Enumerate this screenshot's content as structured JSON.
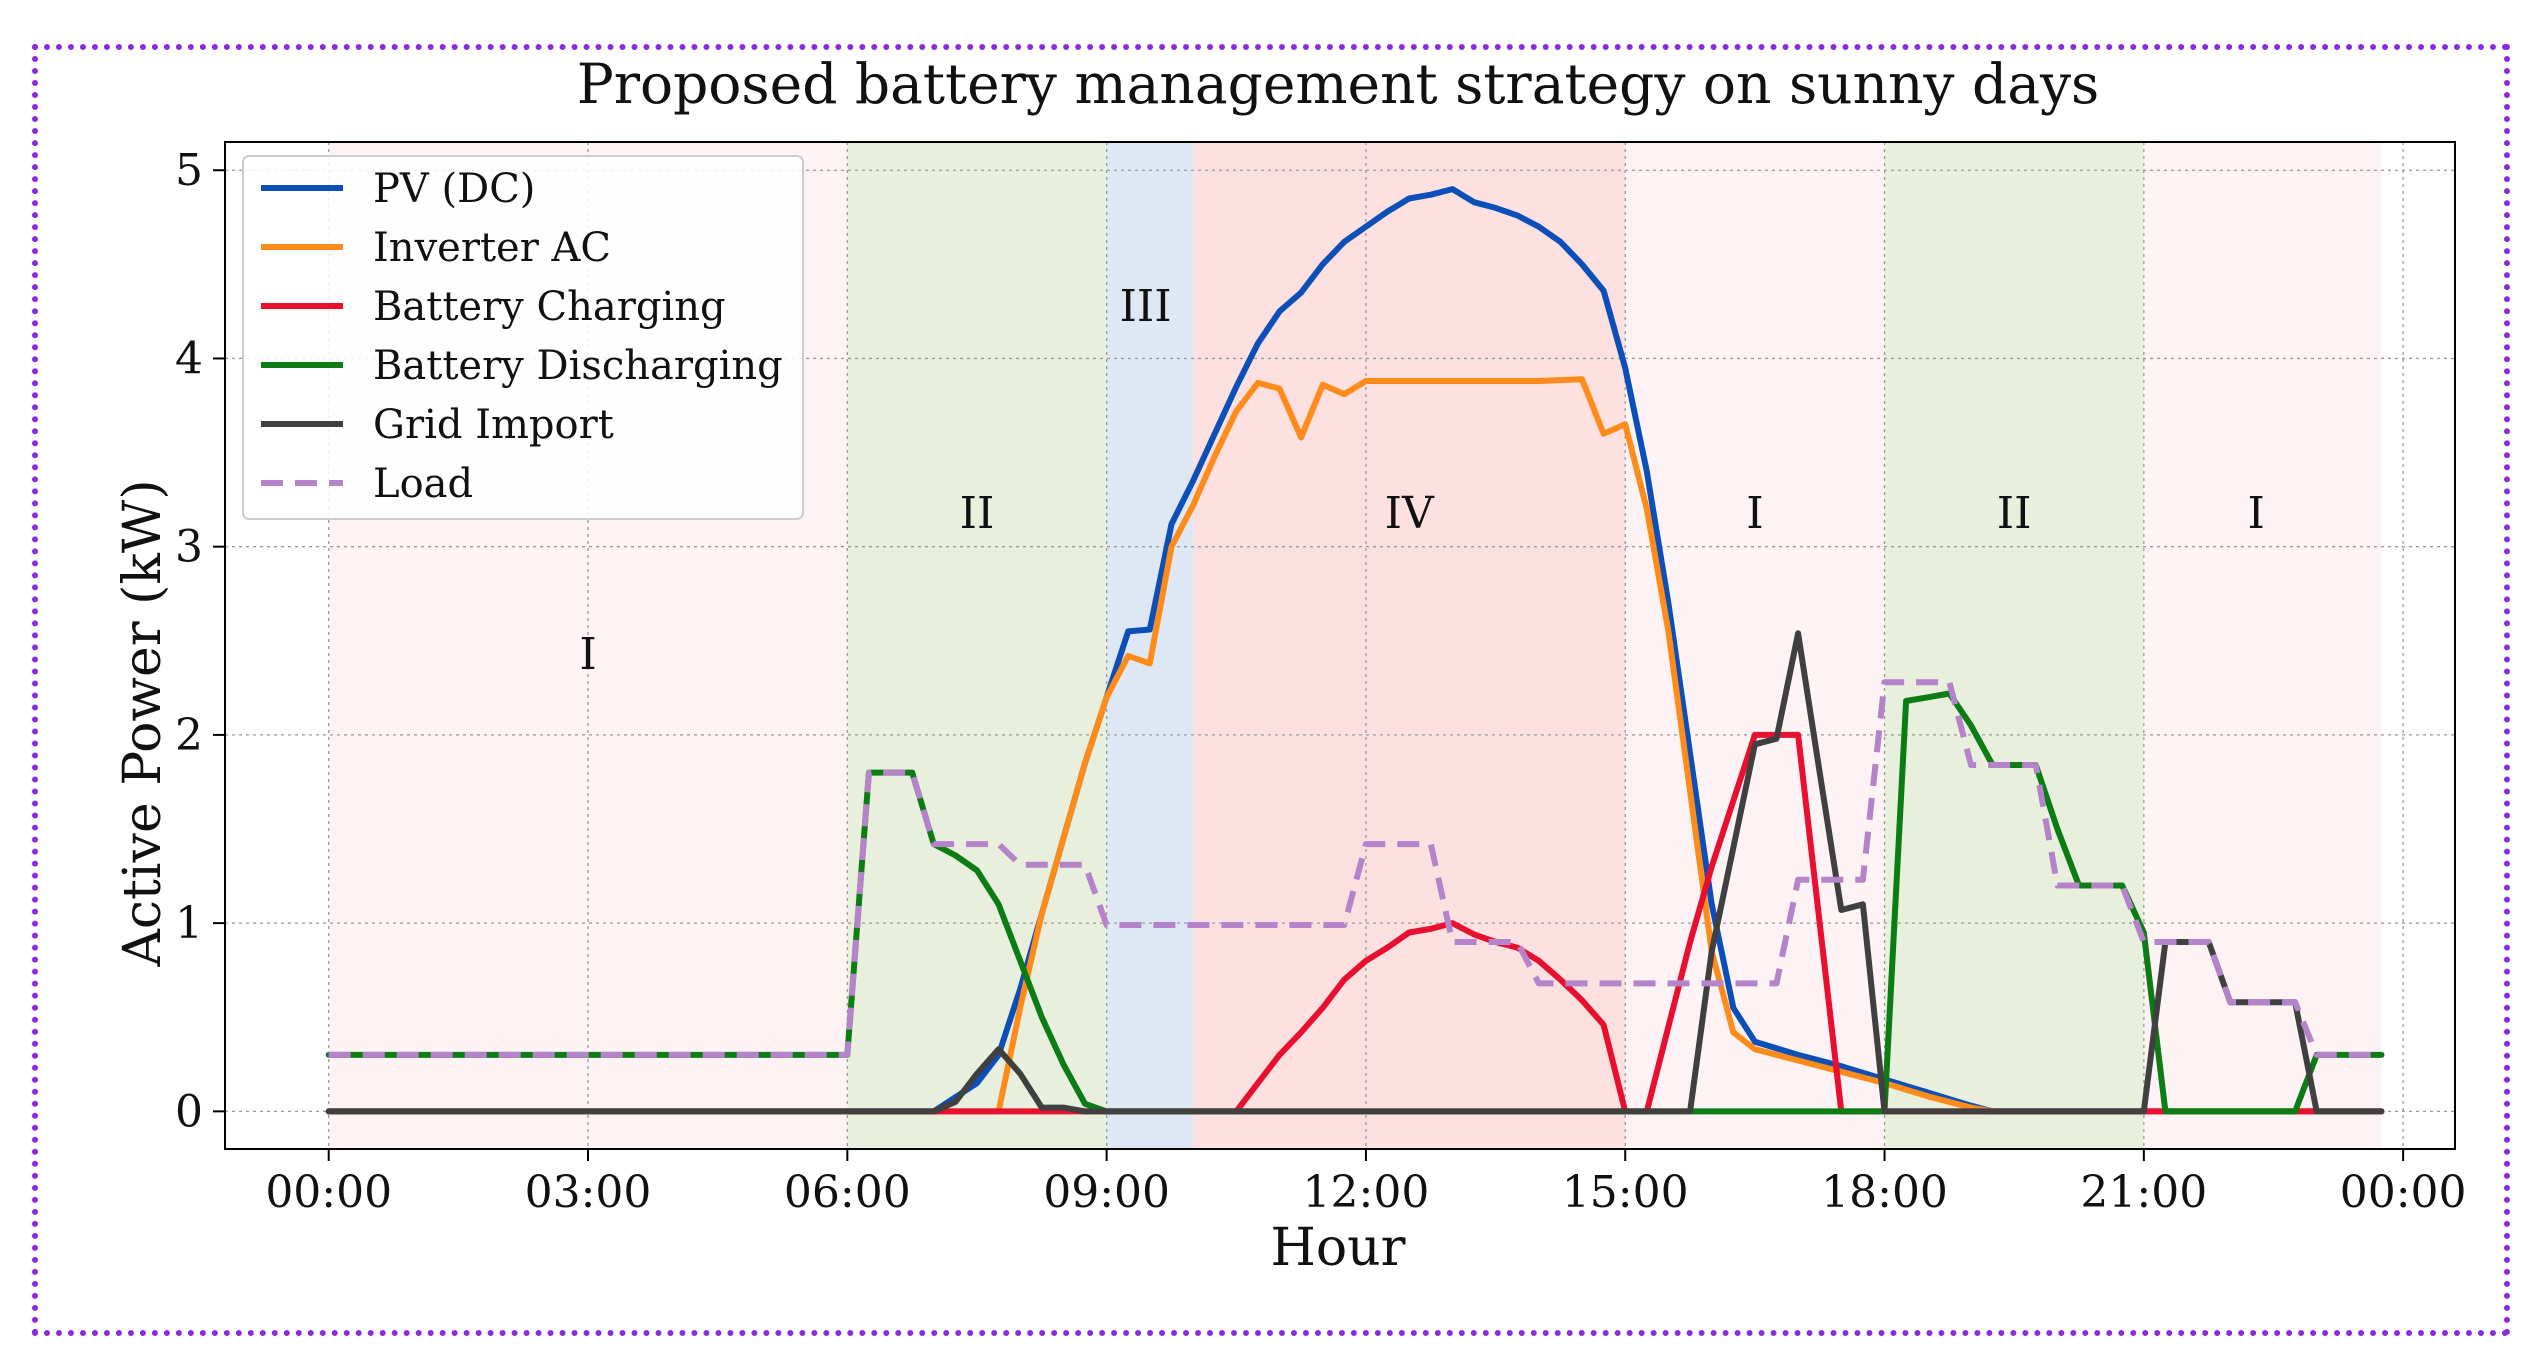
{
  "chart_data": {
    "type": "line",
    "title": "Proposed battery management strategy on sunny days",
    "xlabel": "Hour",
    "ylabel": "Active Power (kW)",
    "xlim": [
      -1.2,
      24.6
    ],
    "ylim": [
      -0.2,
      5.15
    ],
    "grid": true,
    "legend_position": "top-left",
    "x_ticks": [
      0,
      3,
      6,
      9,
      12,
      15,
      18,
      21,
      24
    ],
    "x_tick_labels": [
      "00:00",
      "03:00",
      "06:00",
      "09:00",
      "12:00",
      "15:00",
      "18:00",
      "21:00",
      "00:00"
    ],
    "y_ticks": [
      0,
      1,
      2,
      3,
      4,
      5
    ],
    "y_tick_labels": [
      "0",
      "1",
      "2",
      "3",
      "4",
      "5"
    ],
    "regions": [
      {
        "label": "I",
        "start": 0,
        "end": 6,
        "color": "#fdf3f4",
        "label_x": 3,
        "label_y": 2.35
      },
      {
        "label": "II",
        "start": 6,
        "end": 9,
        "color": "#e9efdd",
        "label_x": 7.5,
        "label_y": 3.1
      },
      {
        "label": "III",
        "start": 9,
        "end": 10,
        "color": "#dde8f4",
        "label_x": 9.45,
        "label_y": 4.2
      },
      {
        "label": "IV",
        "start": 10,
        "end": 15,
        "color": "#fde1e1",
        "label_x": 12.5,
        "label_y": 3.1
      },
      {
        "label": "I",
        "start": 15,
        "end": 18,
        "color": "#fdf3f4",
        "label_x": 16.5,
        "label_y": 3.1
      },
      {
        "label": "II",
        "start": 18,
        "end": 21,
        "color": "#e9efdd",
        "label_x": 19.5,
        "label_y": 3.1
      },
      {
        "label": "I",
        "start": 21,
        "end": 23.75,
        "color": "#fdf3f4",
        "label_x": 22.3,
        "label_y": 3.1
      }
    ],
    "series": [
      {
        "name": "PV (DC)",
        "color": "#0d4fb8",
        "dash": false,
        "points": [
          [
            0,
            0
          ],
          [
            7,
            0
          ],
          [
            7.5,
            0.15
          ],
          [
            7.75,
            0.3
          ],
          [
            8,
            0.65
          ],
          [
            8.25,
            1.05
          ],
          [
            8.5,
            1.45
          ],
          [
            8.75,
            1.85
          ],
          [
            9,
            2.2
          ],
          [
            9.25,
            2.55
          ],
          [
            9.5,
            2.56
          ],
          [
            9.75,
            3.12
          ],
          [
            10,
            3.35
          ],
          [
            10.25,
            3.6
          ],
          [
            10.5,
            3.85
          ],
          [
            10.75,
            4.08
          ],
          [
            11,
            4.25
          ],
          [
            11.25,
            4.35
          ],
          [
            11.5,
            4.5
          ],
          [
            11.75,
            4.62
          ],
          [
            12,
            4.7
          ],
          [
            12.25,
            4.78
          ],
          [
            12.5,
            4.85
          ],
          [
            12.75,
            4.87
          ],
          [
            13,
            4.9
          ],
          [
            13.25,
            4.83
          ],
          [
            13.5,
            4.8
          ],
          [
            13.75,
            4.76
          ],
          [
            14,
            4.7
          ],
          [
            14.25,
            4.62
          ],
          [
            14.5,
            4.5
          ],
          [
            14.75,
            4.36
          ],
          [
            15,
            3.95
          ],
          [
            15.25,
            3.4
          ],
          [
            15.5,
            2.7
          ],
          [
            15.75,
            1.9
          ],
          [
            16,
            1.1
          ],
          [
            16.25,
            0.55
          ],
          [
            16.5,
            0.37
          ],
          [
            17,
            0.3
          ],
          [
            17.5,
            0.24
          ],
          [
            18,
            0.17
          ],
          [
            18.5,
            0.1
          ],
          [
            19,
            0.03
          ],
          [
            19.25,
            0
          ],
          [
            23.75,
            0
          ]
        ]
      },
      {
        "name": "Inverter AC",
        "color": "#ff8c1a",
        "dash": false,
        "points": [
          [
            0,
            0
          ],
          [
            7.75,
            0
          ],
          [
            8,
            0.55
          ],
          [
            8.25,
            1.05
          ],
          [
            8.5,
            1.45
          ],
          [
            8.75,
            1.85
          ],
          [
            9,
            2.2
          ],
          [
            9.25,
            2.42
          ],
          [
            9.5,
            2.38
          ],
          [
            9.75,
            3.0
          ],
          [
            10,
            3.22
          ],
          [
            10.25,
            3.48
          ],
          [
            10.5,
            3.72
          ],
          [
            10.75,
            3.87
          ],
          [
            11,
            3.84
          ],
          [
            11.25,
            3.58
          ],
          [
            11.5,
            3.86
          ],
          [
            11.75,
            3.81
          ],
          [
            12,
            3.88
          ],
          [
            12.5,
            3.88
          ],
          [
            13,
            3.88
          ],
          [
            13.5,
            3.88
          ],
          [
            14,
            3.88
          ],
          [
            14.5,
            3.89
          ],
          [
            14.75,
            3.6
          ],
          [
            15,
            3.65
          ],
          [
            15.25,
            3.2
          ],
          [
            15.5,
            2.55
          ],
          [
            15.75,
            1.7
          ],
          [
            16,
            0.85
          ],
          [
            16.25,
            0.42
          ],
          [
            16.5,
            0.33
          ],
          [
            17,
            0.27
          ],
          [
            17.5,
            0.21
          ],
          [
            18,
            0.15
          ],
          [
            18.5,
            0.08
          ],
          [
            19,
            0.02
          ],
          [
            19.25,
            0
          ],
          [
            23.75,
            0
          ]
        ]
      },
      {
        "name": "Battery Charging",
        "color": "#e8102e",
        "dash": false,
        "points": [
          [
            0,
            0
          ],
          [
            10.5,
            0
          ],
          [
            10.75,
            0.15
          ],
          [
            11,
            0.3
          ],
          [
            11.25,
            0.42
          ],
          [
            11.5,
            0.55
          ],
          [
            11.75,
            0.7
          ],
          [
            12,
            0.8
          ],
          [
            12.25,
            0.87
          ],
          [
            12.5,
            0.95
          ],
          [
            12.75,
            0.97
          ],
          [
            13,
            1.0
          ],
          [
            13.25,
            0.94
          ],
          [
            13.5,
            0.9
          ],
          [
            13.75,
            0.87
          ],
          [
            14,
            0.8
          ],
          [
            14.25,
            0.7
          ],
          [
            14.5,
            0.59
          ],
          [
            14.75,
            0.46
          ],
          [
            15,
            0
          ],
          [
            15.25,
            0
          ],
          [
            15.5,
            0.45
          ],
          [
            15.75,
            0.9
          ],
          [
            16,
            1.3
          ],
          [
            16.25,
            1.65
          ],
          [
            16.5,
            2.0
          ],
          [
            16.75,
            2.0
          ],
          [
            17,
            2.0
          ],
          [
            17.25,
            1.0
          ],
          [
            17.5,
            0
          ],
          [
            23.75,
            0
          ]
        ]
      },
      {
        "name": "Battery Discharging",
        "color": "#0b7d14",
        "dash": false,
        "points": [
          [
            0,
            0.3
          ],
          [
            6,
            0.3
          ],
          [
            6.25,
            1.8
          ],
          [
            6.5,
            1.8
          ],
          [
            6.75,
            1.8
          ],
          [
            7,
            1.42
          ],
          [
            7.25,
            1.36
          ],
          [
            7.5,
            1.28
          ],
          [
            7.75,
            1.1
          ],
          [
            8,
            0.8
          ],
          [
            8.25,
            0.5
          ],
          [
            8.5,
            0.25
          ],
          [
            8.75,
            0.04
          ],
          [
            9,
            0
          ],
          [
            18,
            0
          ],
          [
            18.25,
            2.18
          ],
          [
            18.5,
            2.2
          ],
          [
            18.75,
            2.22
          ],
          [
            19,
            2.05
          ],
          [
            19.25,
            1.84
          ],
          [
            19.5,
            1.84
          ],
          [
            19.75,
            1.84
          ],
          [
            20,
            1.5
          ],
          [
            20.25,
            1.2
          ],
          [
            20.5,
            1.2
          ],
          [
            20.75,
            1.2
          ],
          [
            21,
            0.95
          ],
          [
            21.25,
            0
          ],
          [
            22.75,
            0
          ],
          [
            23,
            0.3
          ],
          [
            23.75,
            0.3
          ]
        ]
      },
      {
        "name": "Grid Import",
        "color": "#404040",
        "dash": false,
        "points": [
          [
            0,
            0
          ],
          [
            7,
            0
          ],
          [
            7.25,
            0.05
          ],
          [
            7.5,
            0.2
          ],
          [
            7.75,
            0.33
          ],
          [
            8,
            0.2
          ],
          [
            8.25,
            0.02
          ],
          [
            8.5,
            0.02
          ],
          [
            8.75,
            0
          ],
          [
            15.75,
            0
          ],
          [
            16,
            0.85
          ],
          [
            16.25,
            1.4
          ],
          [
            16.5,
            1.95
          ],
          [
            16.75,
            1.98
          ],
          [
            17,
            2.54
          ],
          [
            17.25,
            1.8
          ],
          [
            17.5,
            1.07
          ],
          [
            17.75,
            1.1
          ],
          [
            18,
            0
          ],
          [
            21,
            0
          ],
          [
            21.25,
            0.9
          ],
          [
            21.5,
            0.9
          ],
          [
            21.75,
            0.9
          ],
          [
            22,
            0.58
          ],
          [
            22.25,
            0.58
          ],
          [
            22.5,
            0.58
          ],
          [
            22.75,
            0.58
          ],
          [
            23,
            0
          ],
          [
            23.75,
            0
          ]
        ]
      },
      {
        "name": "Load",
        "color": "#b583c9",
        "dash": true,
        "points": [
          [
            0,
            0.3
          ],
          [
            6,
            0.3
          ],
          [
            6.25,
            1.8
          ],
          [
            6.5,
            1.8
          ],
          [
            6.75,
            1.8
          ],
          [
            7,
            1.42
          ],
          [
            7.25,
            1.42
          ],
          [
            7.5,
            1.42
          ],
          [
            7.75,
            1.42
          ],
          [
            8,
            1.31
          ],
          [
            8.25,
            1.31
          ],
          [
            8.5,
            1.31
          ],
          [
            8.75,
            1.31
          ],
          [
            9,
            0.99
          ],
          [
            9.5,
            0.99
          ],
          [
            10,
            0.99
          ],
          [
            10.5,
            0.99
          ],
          [
            11,
            0.99
          ],
          [
            11.5,
            0.99
          ],
          [
            11.75,
            0.99
          ],
          [
            12,
            1.42
          ],
          [
            12.25,
            1.42
          ],
          [
            12.5,
            1.42
          ],
          [
            12.75,
            1.42
          ],
          [
            13,
            0.9
          ],
          [
            13.25,
            0.9
          ],
          [
            13.5,
            0.9
          ],
          [
            13.75,
            0.9
          ],
          [
            14,
            0.68
          ],
          [
            14.5,
            0.68
          ],
          [
            15,
            0.68
          ],
          [
            15.5,
            0.68
          ],
          [
            16,
            0.68
          ],
          [
            16.5,
            0.68
          ],
          [
            16.75,
            0.68
          ],
          [
            17,
            1.23
          ],
          [
            17.25,
            1.23
          ],
          [
            17.5,
            1.23
          ],
          [
            17.75,
            1.23
          ],
          [
            18,
            2.28
          ],
          [
            18.25,
            2.28
          ],
          [
            18.5,
            2.28
          ],
          [
            18.75,
            2.28
          ],
          [
            19,
            1.84
          ],
          [
            19.25,
            1.84
          ],
          [
            19.5,
            1.84
          ],
          [
            19.75,
            1.84
          ],
          [
            20,
            1.2
          ],
          [
            20.25,
            1.2
          ],
          [
            20.5,
            1.2
          ],
          [
            20.75,
            1.2
          ],
          [
            21,
            0.9
          ],
          [
            21.25,
            0.9
          ],
          [
            21.5,
            0.9
          ],
          [
            21.75,
            0.9
          ],
          [
            22,
            0.58
          ],
          [
            22.25,
            0.58
          ],
          [
            22.5,
            0.58
          ],
          [
            22.75,
            0.58
          ],
          [
            23,
            0.3
          ],
          [
            23.75,
            0.3
          ]
        ]
      }
    ]
  }
}
